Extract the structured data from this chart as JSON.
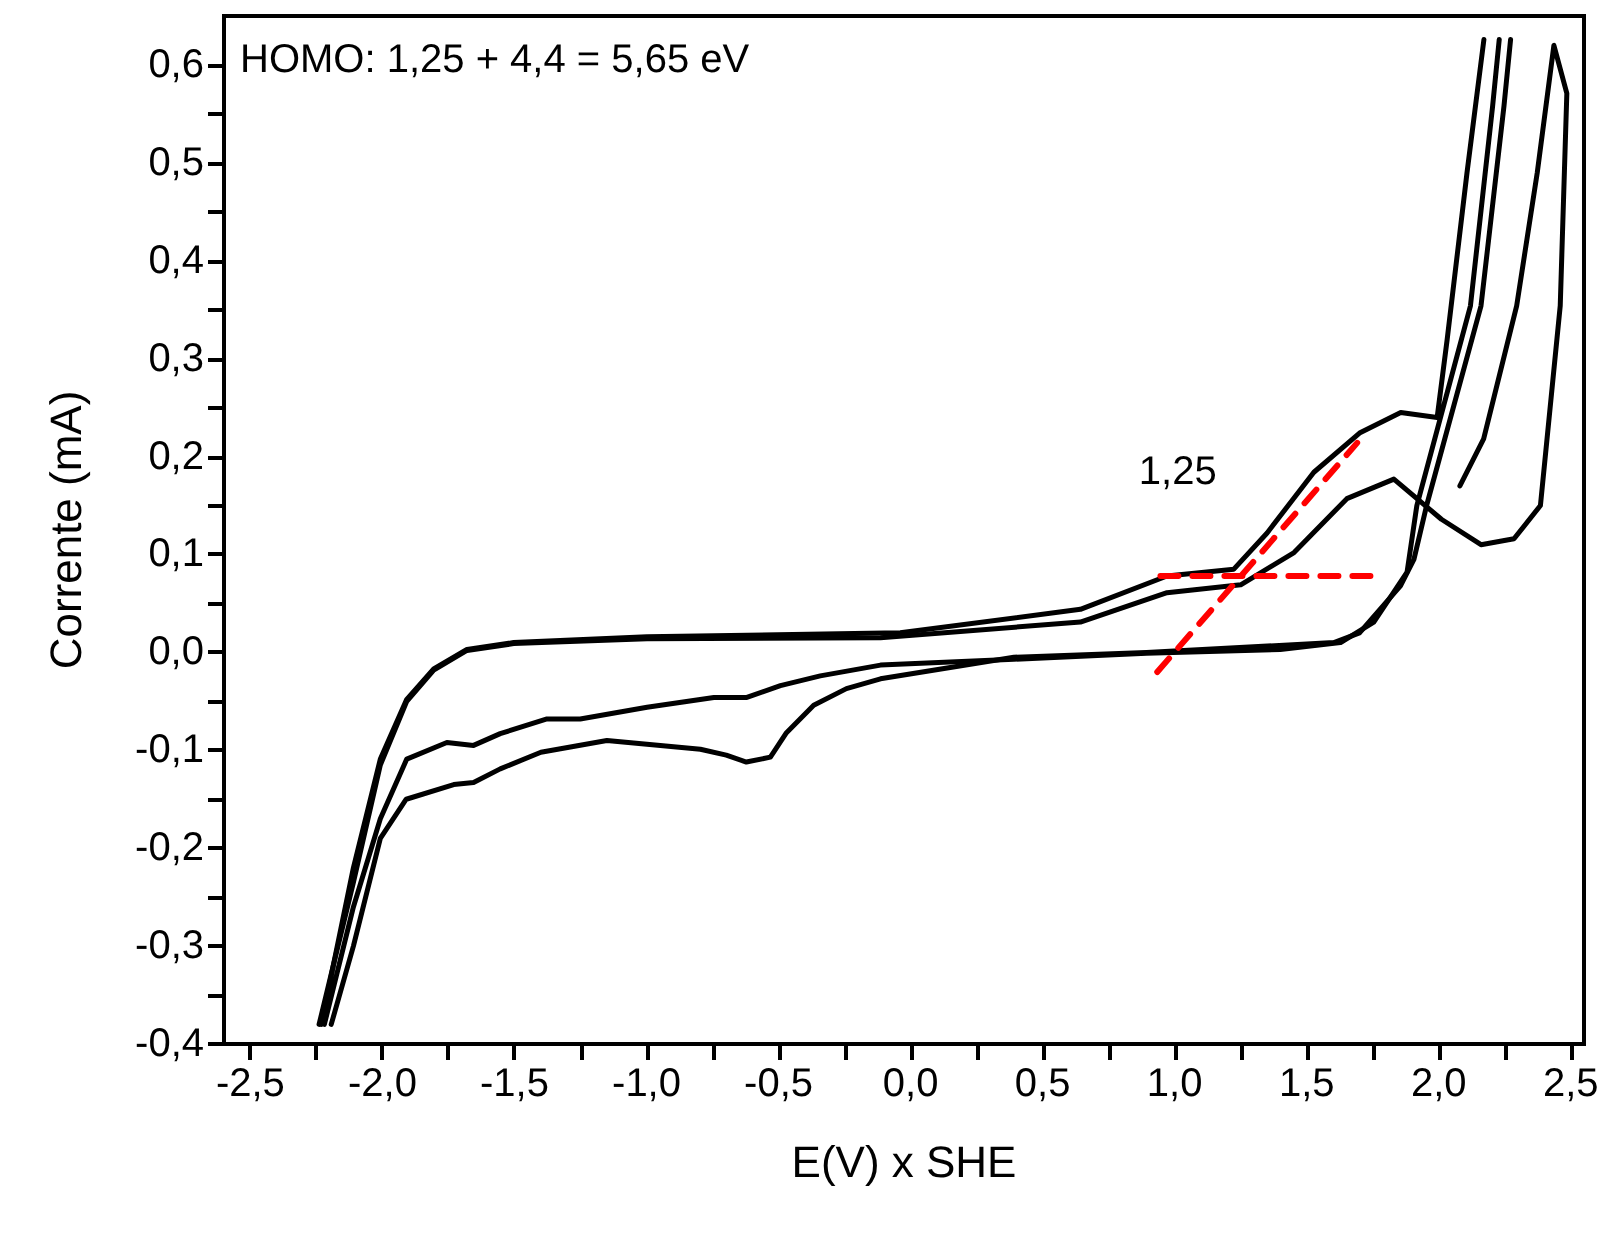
{
  "chart_data": {
    "type": "line",
    "xlabel": "E(V) x SHE",
    "ylabel": "Corrente (mA)",
    "annotations": [
      "HOMO: 1,25 + 4,4 = 5,65 eV",
      {
        "text": "1,25",
        "x": 1.25,
        "y": 0.078
      }
    ],
    "xlim": [
      -2.6,
      2.55
    ],
    "ylim": [
      -0.4,
      0.65
    ],
    "xticks": [
      {
        "value": -2.5,
        "label": "-2,5"
      },
      {
        "value": -2.25,
        "label": null
      },
      {
        "value": -2.0,
        "label": "-2,0"
      },
      {
        "value": -1.75,
        "label": null
      },
      {
        "value": -1.5,
        "label": "-1,5"
      },
      {
        "value": -1.25,
        "label": null
      },
      {
        "value": -1.0,
        "label": "-1,0"
      },
      {
        "value": -0.75,
        "label": null
      },
      {
        "value": -0.5,
        "label": "-0,5"
      },
      {
        "value": -0.25,
        "label": null
      },
      {
        "value": 0,
        "label": "0,0"
      },
      {
        "value": 0.25,
        "label": null
      },
      {
        "value": 0.5,
        "label": "0,5"
      },
      {
        "value": 0.75,
        "label": null
      },
      {
        "value": 1.0,
        "label": "1,0"
      },
      {
        "value": 1.25,
        "label": null
      },
      {
        "value": 1.5,
        "label": "1,5"
      },
      {
        "value": 1.75,
        "label": null
      },
      {
        "value": 2.0,
        "label": "2,0"
      },
      {
        "value": 2.25,
        "label": null
      },
      {
        "value": 2.5,
        "label": "2,5"
      }
    ],
    "yticks": [
      {
        "value": -0.4,
        "label": "-0,4"
      },
      {
        "value": -0.35,
        "label": null
      },
      {
        "value": -0.3,
        "label": "-0,3"
      },
      {
        "value": -0.25,
        "label": null
      },
      {
        "value": -0.2,
        "label": "-0,2"
      },
      {
        "value": -0.15,
        "label": null
      },
      {
        "value": -0.1,
        "label": "-0,1"
      },
      {
        "value": -0.05,
        "label": null
      },
      {
        "value": 0,
        "label": "0,0"
      },
      {
        "value": 0.05,
        "label": null
      },
      {
        "value": 0.1,
        "label": "0,1"
      },
      {
        "value": 0.15,
        "label": null
      },
      {
        "value": 0.2,
        "label": "0,2"
      },
      {
        "value": 0.25,
        "label": null
      },
      {
        "value": 0.3,
        "label": "0,3"
      },
      {
        "value": 0.35,
        "label": null
      },
      {
        "value": 0.4,
        "label": "0,4"
      },
      {
        "value": 0.45,
        "label": null
      },
      {
        "value": 0.5,
        "label": "0,5"
      },
      {
        "value": 0.55,
        "label": null
      },
      {
        "value": 0.6,
        "label": "0,6"
      }
    ],
    "grid": false,
    "marker": "none",
    "line_style": "solid",
    "series": [
      {
        "color": "#000000",
        "x": [
          -2.232,
          -2.11,
          -2.008,
          -1.908,
          -1.806,
          -1.68,
          -1.503,
          -0.998,
          -0.039,
          0.643,
          0.971,
          1.224,
          1.35,
          1.527,
          1.7,
          1.856,
          1.994,
          2.032,
          2.107,
          2.171,
          null,
          2.229,
          2.204,
          2.12,
          1.917,
          1.88,
          1.754,
          1.628,
          1.4,
          0.893,
          0.391,
          -0.114,
          -0.342,
          -0.493,
          -0.62,
          -0.745,
          -0.998,
          -1.251,
          -1.377,
          -1.554,
          -1.655,
          -1.756,
          -1.908,
          -2.008,
          -2.11,
          -2.22
        ],
        "values": [
          -0.38,
          -0.22,
          -0.109,
          -0.048,
          -0.017,
          0.003,
          0.01,
          0.016,
          0.02,
          0.044,
          0.078,
          0.085,
          0.122,
          0.184,
          0.224,
          0.245,
          0.24,
          0.32,
          0.49,
          0.626,
          null,
          0.626,
          0.558,
          0.354,
          0.15,
          0.082,
          0.031,
          0.01,
          0.003,
          -0.001,
          -0.007,
          -0.013,
          -0.024,
          -0.034,
          -0.046,
          -0.046,
          -0.056,
          -0.068,
          -0.068,
          -0.083,
          -0.095,
          -0.092,
          -0.109,
          -0.17,
          -0.26,
          -0.38
        ]
      },
      {
        "color": "#000000",
        "x": [
          -2.24,
          -2.11,
          -2.008,
          -1.908,
          -1.806,
          -1.68,
          -1.503,
          -0.998,
          -0.114,
          0.643,
          0.971,
          1.25,
          1.452,
          1.652,
          1.83,
          2.01,
          2.16,
          2.285,
          2.385,
          2.46,
          2.485,
          2.436,
          2.373,
          2.295,
          2.17,
          2.08
        ],
        "values": [
          -0.38,
          -0.235,
          -0.115,
          -0.05,
          -0.018,
          0.002,
          0.009,
          0.014,
          0.015,
          0.031,
          0.061,
          0.069,
          0.102,
          0.157,
          0.177,
          0.136,
          0.11,
          0.116,
          0.15,
          0.354,
          0.571,
          0.62,
          0.49,
          0.354,
          0.218,
          0.17
        ]
      },
      {
        "color": "#000000",
        "x": [
          2.272,
          2.247,
          2.16,
          1.954,
          1.906,
          1.855,
          1.7,
          1.603,
          0.893,
          0.391,
          -0.114,
          -0.243,
          -0.367,
          -0.47,
          -0.531,
          -0.622,
          -0.698,
          -0.796,
          -1.15,
          -1.4,
          -1.554,
          -1.655,
          -1.73,
          -1.91,
          -2.008,
          -2.11,
          -2.194
        ],
        "values": [
          0.626,
          0.558,
          0.354,
          0.15,
          0.095,
          0.068,
          0.02,
          0.01,
          0.0,
          -0.005,
          -0.027,
          -0.037,
          -0.054,
          -0.082,
          -0.107,
          -0.112,
          -0.105,
          -0.099,
          -0.09,
          -0.102,
          -0.119,
          -0.133,
          -0.135,
          -0.15,
          -0.19,
          -0.3,
          -0.38
        ]
      },
      {
        "color": "#ff0000",
        "line_style": "dashed",
        "x": [
          0.934,
          1.691
        ],
        "values": [
          -0.02,
          0.214
        ]
      },
      {
        "color": "#ff0000",
        "line_style": "dashed",
        "x": [
          0.946,
          1.754
        ],
        "values": [
          0.078,
          0.078
        ]
      }
    ]
  }
}
